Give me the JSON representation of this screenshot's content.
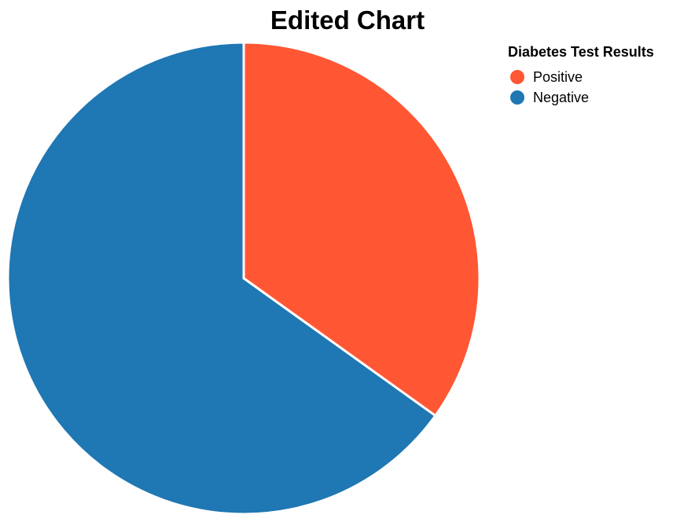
{
  "chart_data": {
    "type": "pie",
    "title": "Edited Chart",
    "legend": {
      "title": "Diabetes Test Results",
      "placement": "top-right"
    },
    "slices": [
      {
        "label": "Positive",
        "value": 34.9,
        "color": "#FF5733"
      },
      {
        "label": "Negative",
        "value": 65.1,
        "color": "#1F77B4"
      }
    ]
  }
}
